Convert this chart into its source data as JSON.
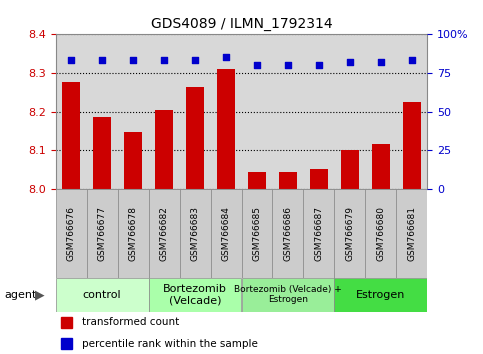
{
  "title": "GDS4089 / ILMN_1792314",
  "samples": [
    "GSM766676",
    "GSM766677",
    "GSM766678",
    "GSM766682",
    "GSM766683",
    "GSM766684",
    "GSM766685",
    "GSM766686",
    "GSM766687",
    "GSM766679",
    "GSM766680",
    "GSM766681"
  ],
  "bar_values": [
    8.275,
    8.185,
    8.148,
    8.203,
    8.263,
    8.308,
    8.045,
    8.044,
    8.052,
    8.102,
    8.116,
    8.225
  ],
  "percentile_values": [
    83,
    83,
    83,
    83,
    83,
    85,
    80,
    80,
    80,
    82,
    82,
    83
  ],
  "ylim_left": [
    8.0,
    8.4
  ],
  "ylim_right": [
    0,
    100
  ],
  "yticks_left": [
    8.0,
    8.1,
    8.2,
    8.3,
    8.4
  ],
  "yticks_right": [
    0,
    25,
    50,
    75,
    100
  ],
  "bar_color": "#cc0000",
  "scatter_color": "#0000cc",
  "bar_width": 0.6,
  "groups": [
    {
      "label": "control",
      "indices": [
        0,
        1,
        2
      ],
      "color": "#ccffcc"
    },
    {
      "label": "Bortezomib\n(Velcade)",
      "indices": [
        3,
        4,
        5
      ],
      "color": "#aaffaa"
    },
    {
      "label": "Bortezomib (Velcade) +\nEstrogen",
      "indices": [
        6,
        7,
        8
      ],
      "color": "#99ee99"
    },
    {
      "label": "Estrogen",
      "indices": [
        9,
        10,
        11
      ],
      "color": "#44dd44"
    }
  ],
  "legend_items": [
    {
      "label": "transformed count",
      "color": "#cc0000"
    },
    {
      "label": "percentile rank within the sample",
      "color": "#0000cc"
    }
  ],
  "agent_label": "agent",
  "left_tick_color": "#cc0000",
  "right_tick_color": "#0000cc",
  "bg_color": "#ffffff",
  "plot_bg_color": "#d8d8d8",
  "sample_box_color": "#cccccc"
}
